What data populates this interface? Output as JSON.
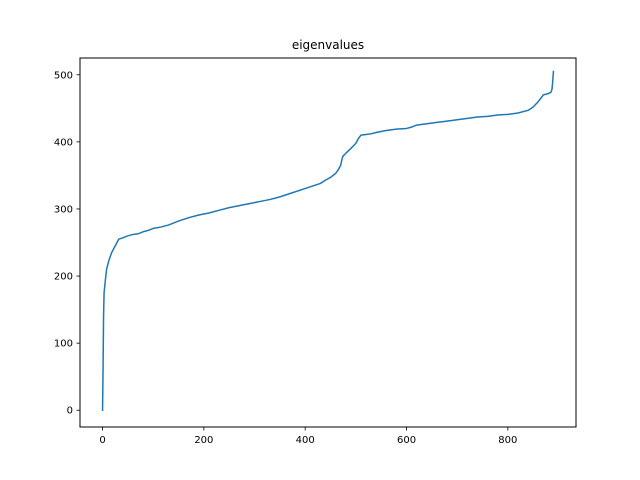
{
  "chart_data": {
    "type": "line",
    "title": "eigenvalues",
    "xlabel": "",
    "ylabel": "",
    "xlim": [
      -44.5,
      934.5
    ],
    "ylim": [
      -25,
      525
    ],
    "xticks": [
      0,
      200,
      400,
      600,
      800
    ],
    "yticks": [
      0,
      100,
      200,
      300,
      400,
      500
    ],
    "grid": false,
    "legend": "none",
    "series": [
      {
        "name": "eigenvalues",
        "color": "#1f77b4",
        "x": [
          0,
          1,
          2,
          3,
          5,
          8,
          12,
          18,
          25,
          32,
          40,
          50,
          60,
          70,
          80,
          90,
          100,
          115,
          130,
          150,
          170,
          190,
          210,
          230,
          250,
          270,
          290,
          310,
          330,
          350,
          370,
          390,
          410,
          430,
          440,
          450,
          460,
          465,
          470,
          472,
          474,
          476,
          478,
          480,
          490,
          500,
          505,
          510,
          520,
          530,
          540,
          560,
          580,
          600,
          610,
          620,
          640,
          660,
          680,
          700,
          720,
          740,
          760,
          780,
          800,
          820,
          840,
          850,
          860,
          865,
          870,
          875,
          880,
          885,
          887,
          888,
          889,
          890
        ],
        "values": [
          0,
          60,
          140,
          175,
          190,
          210,
          222,
          235,
          245,
          255,
          257,
          260,
          262,
          263,
          266,
          268,
          271,
          273,
          276,
          282,
          287,
          291,
          294,
          298,
          302,
          305,
          308,
          311,
          314,
          318,
          323,
          328,
          333,
          338,
          343,
          347,
          353,
          358,
          365,
          372,
          378,
          380,
          381,
          383,
          390,
          398,
          405,
          410,
          411,
          412,
          414,
          417,
          419,
          420,
          422,
          425,
          427,
          429,
          431,
          433,
          435,
          437,
          438,
          440,
          441,
          443,
          447,
          452,
          460,
          465,
          470,
          471,
          472,
          474,
          478,
          485,
          495,
          505
        ]
      }
    ]
  }
}
